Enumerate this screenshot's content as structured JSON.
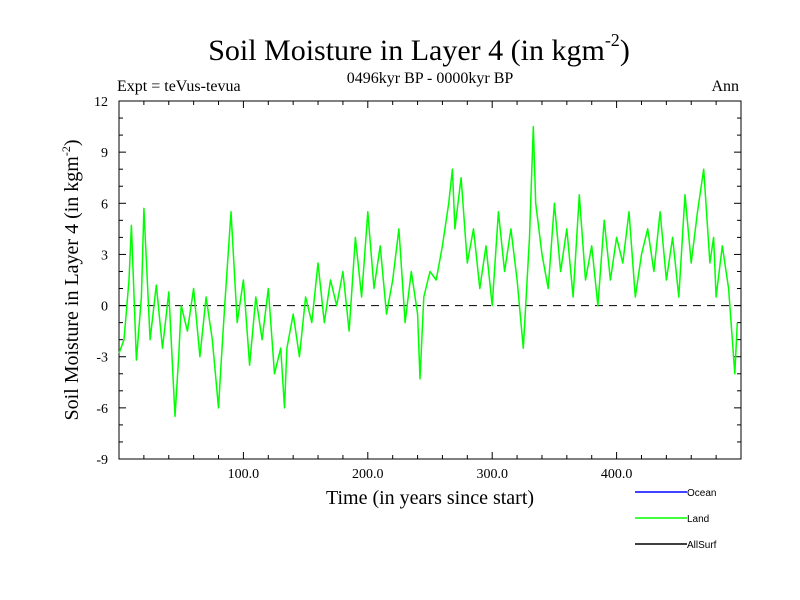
{
  "chart_data": {
    "type": "line",
    "title": "Soil Moisture in Layer 4 (in kgm",
    "title_sup": "-2",
    "title_end": ")",
    "subtitle": "0496kyr BP - 0000kyr BP",
    "left_label": "Expt = teVus-tevua",
    "right_label": "Ann",
    "xlabel": "Time (in years since start)",
    "ylabel": "Soil Moisture in Layer 4 (in kgm",
    "ylabel_sup": "-2",
    "ylabel_end": ")",
    "xlim": [
      0,
      500
    ],
    "ylim": [
      -9,
      12
    ],
    "x_ticks": [
      100,
      200,
      300,
      400
    ],
    "x_tick_labels": [
      "100.0",
      "200.0",
      "300.0",
      "400.0"
    ],
    "y_ticks": [
      -9,
      -6,
      -3,
      0,
      3,
      6,
      9,
      12
    ],
    "y_tick_labels": [
      "-9",
      "-6",
      "-3",
      "0",
      "3",
      "6",
      "9",
      "12"
    ],
    "zero_line": true,
    "legend_position": "bottom-right",
    "legend": [
      {
        "name": "Ocean",
        "color": "#0000ff"
      },
      {
        "name": "Land",
        "color": "#00ff00"
      },
      {
        "name": "AllSurf",
        "color": "#000000"
      }
    ],
    "series": [
      {
        "name": "Land",
        "color": "#00ff00",
        "x": [
          0,
          4,
          8,
          10,
          14,
          18,
          20,
          25,
          30,
          35,
          40,
          45,
          48,
          50,
          55,
          60,
          65,
          70,
          75,
          80,
          82,
          85,
          90,
          95,
          100,
          105,
          110,
          115,
          120,
          125,
          130,
          133,
          135,
          140,
          145,
          150,
          155,
          160,
          165,
          170,
          175,
          180,
          185,
          190,
          195,
          200,
          205,
          210,
          215,
          220,
          225,
          230,
          235,
          240,
          242,
          245,
          250,
          255,
          260,
          265,
          268,
          270,
          275,
          280,
          285,
          290,
          295,
          300,
          305,
          310,
          315,
          320,
          325,
          330,
          333,
          335,
          340,
          345,
          350,
          355,
          360,
          365,
          370,
          375,
          380,
          385,
          390,
          395,
          400,
          405,
          410,
          415,
          420,
          425,
          430,
          435,
          440,
          445,
          450,
          455,
          460,
          465,
          470,
          475,
          478,
          480,
          485,
          490,
          495,
          497
        ],
        "values": [
          -2.8,
          -2.0,
          1.5,
          4.7,
          -3.2,
          0.5,
          5.7,
          -2.0,
          1.2,
          -2.5,
          0.8,
          -6.5,
          -3.0,
          0.0,
          -1.5,
          1.0,
          -3.0,
          0.5,
          -2.0,
          -6.0,
          -3.5,
          0.0,
          5.5,
          -1.0,
          1.5,
          -3.5,
          0.5,
          -2.0,
          1.0,
          -4.0,
          -2.5,
          -6.0,
          -2.5,
          -0.5,
          -3.0,
          0.5,
          -1.0,
          2.5,
          -1.0,
          1.5,
          0.0,
          2.0,
          -1.5,
          4.0,
          0.5,
          5.5,
          1.0,
          3.5,
          -0.5,
          1.5,
          4.5,
          -1.0,
          2.0,
          -0.5,
          -4.3,
          0.5,
          2.0,
          1.5,
          3.5,
          6.0,
          8.0,
          4.5,
          7.5,
          2.5,
          4.5,
          1.0,
          3.5,
          0.0,
          5.5,
          2.0,
          4.5,
          1.5,
          -2.5,
          4.0,
          10.5,
          6.0,
          3.0,
          1.0,
          6.0,
          2.0,
          4.5,
          0.5,
          6.5,
          1.5,
          3.5,
          0.0,
          5.0,
          1.5,
          4.0,
          2.5,
          5.5,
          0.5,
          3.0,
          4.5,
          2.0,
          5.5,
          1.5,
          4.0,
          0.5,
          6.5,
          2.5,
          5.5,
          8.0,
          2.5,
          4.0,
          0.5,
          3.5,
          1.0,
          -4.0,
          -1.0
        ]
      }
    ]
  }
}
